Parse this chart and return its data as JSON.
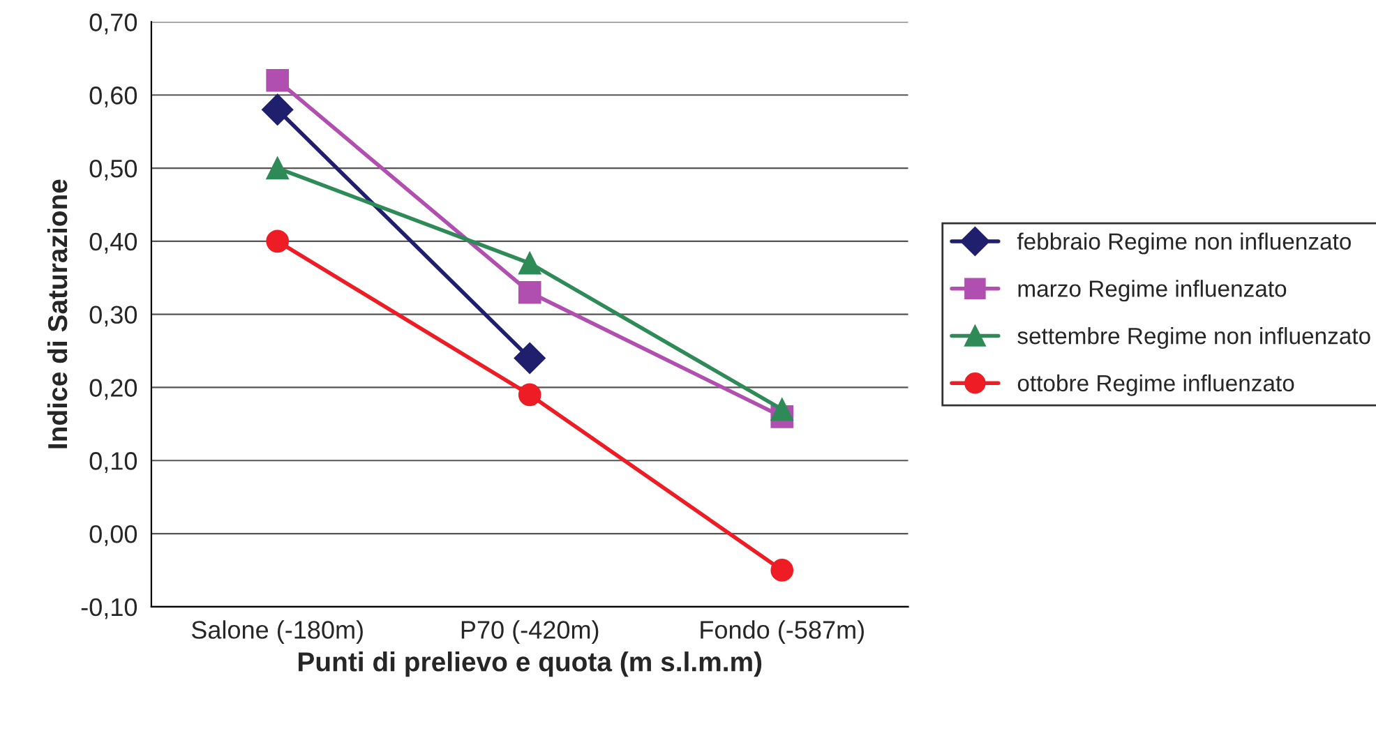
{
  "chart_data": {
    "type": "line",
    "xlabel": "Punti di prelievo e quota (m s.l.m.m)",
    "ylabel": "Indice di Saturazione",
    "categories": [
      "Salone (-180m)",
      "P70 (-420m)",
      "Fondo (-587m)"
    ],
    "series": [
      {
        "name": "febbraio Regime non influenzato",
        "color": "#1f1f6e",
        "marker": "diamond",
        "values": [
          0.58,
          0.24,
          null
        ]
      },
      {
        "name": "marzo Regime influenzato",
        "color": "#b04fb0",
        "marker": "square",
        "values": [
          0.62,
          0.33,
          0.16
        ]
      },
      {
        "name": "settembre Regime non influenzato",
        "color": "#2e8b57",
        "marker": "triangle",
        "values": [
          0.5,
          0.37,
          0.17
        ]
      },
      {
        "name": "ottobre Regime influenzato",
        "color": "#ee1c24",
        "marker": "circle",
        "values": [
          0.4,
          0.19,
          -0.05
        ]
      }
    ],
    "ylim": [
      -0.1,
      0.7
    ],
    "yticks": [
      {
        "value": -0.1,
        "label": "-0,10"
      },
      {
        "value": 0,
        "label": "0,00"
      },
      {
        "value": 0.1,
        "label": "0,10"
      },
      {
        "value": 0.2,
        "label": "0,20"
      },
      {
        "value": 0.3,
        "label": "0,30"
      },
      {
        "value": 0.4,
        "label": "0,40"
      },
      {
        "value": 0.5,
        "label": "0,50"
      },
      {
        "value": 0.6,
        "label": "0,60"
      },
      {
        "value": 0.7,
        "label": "0,70"
      }
    ],
    "grid": "y",
    "legend": "right",
    "line_style": "solid"
  }
}
